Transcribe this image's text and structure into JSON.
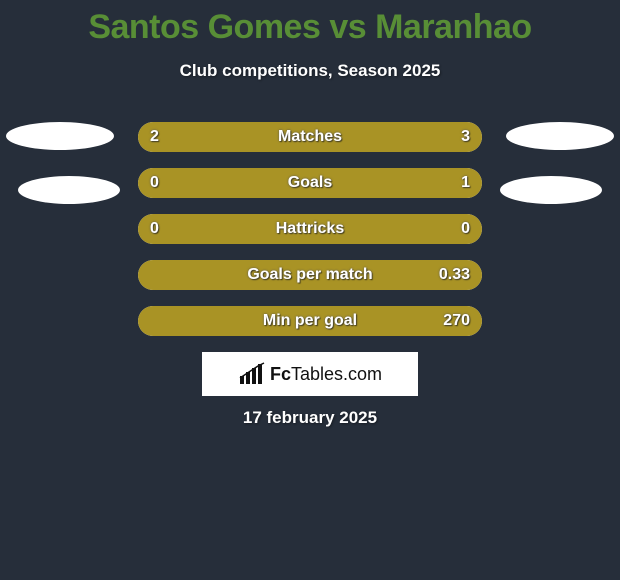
{
  "title": "Santos Gomes vs Maranhao",
  "subtitle": "Club competitions, Season 2025",
  "date": "17 february 2025",
  "colors": {
    "background": "#262e3a",
    "title": "#588e36",
    "bar_fill": "#a99325",
    "bar_bg": "#ffffff",
    "text": "#ffffff"
  },
  "logo": {
    "text_left": "Fc",
    "text_right": "Tables",
    "suffix": ".com"
  },
  "stats": [
    {
      "label": "Matches",
      "left_value": "2",
      "right_value": "3",
      "left_pct": 0.4,
      "right_pct": 0.6
    },
    {
      "label": "Goals",
      "left_value": "0",
      "right_value": "1",
      "left_pct": 0.13,
      "right_pct": 0.87
    },
    {
      "label": "Hattricks",
      "left_value": "0",
      "right_value": "0",
      "left_pct": 0.5,
      "right_pct": 0.5
    },
    {
      "label": "Goals per match",
      "left_value": "",
      "right_value": "0.33",
      "left_pct": 0.13,
      "right_pct": 0.87
    },
    {
      "label": "Min per goal",
      "left_value": "",
      "right_value": "270",
      "left_pct": 0.13,
      "right_pct": 0.87
    }
  ]
}
